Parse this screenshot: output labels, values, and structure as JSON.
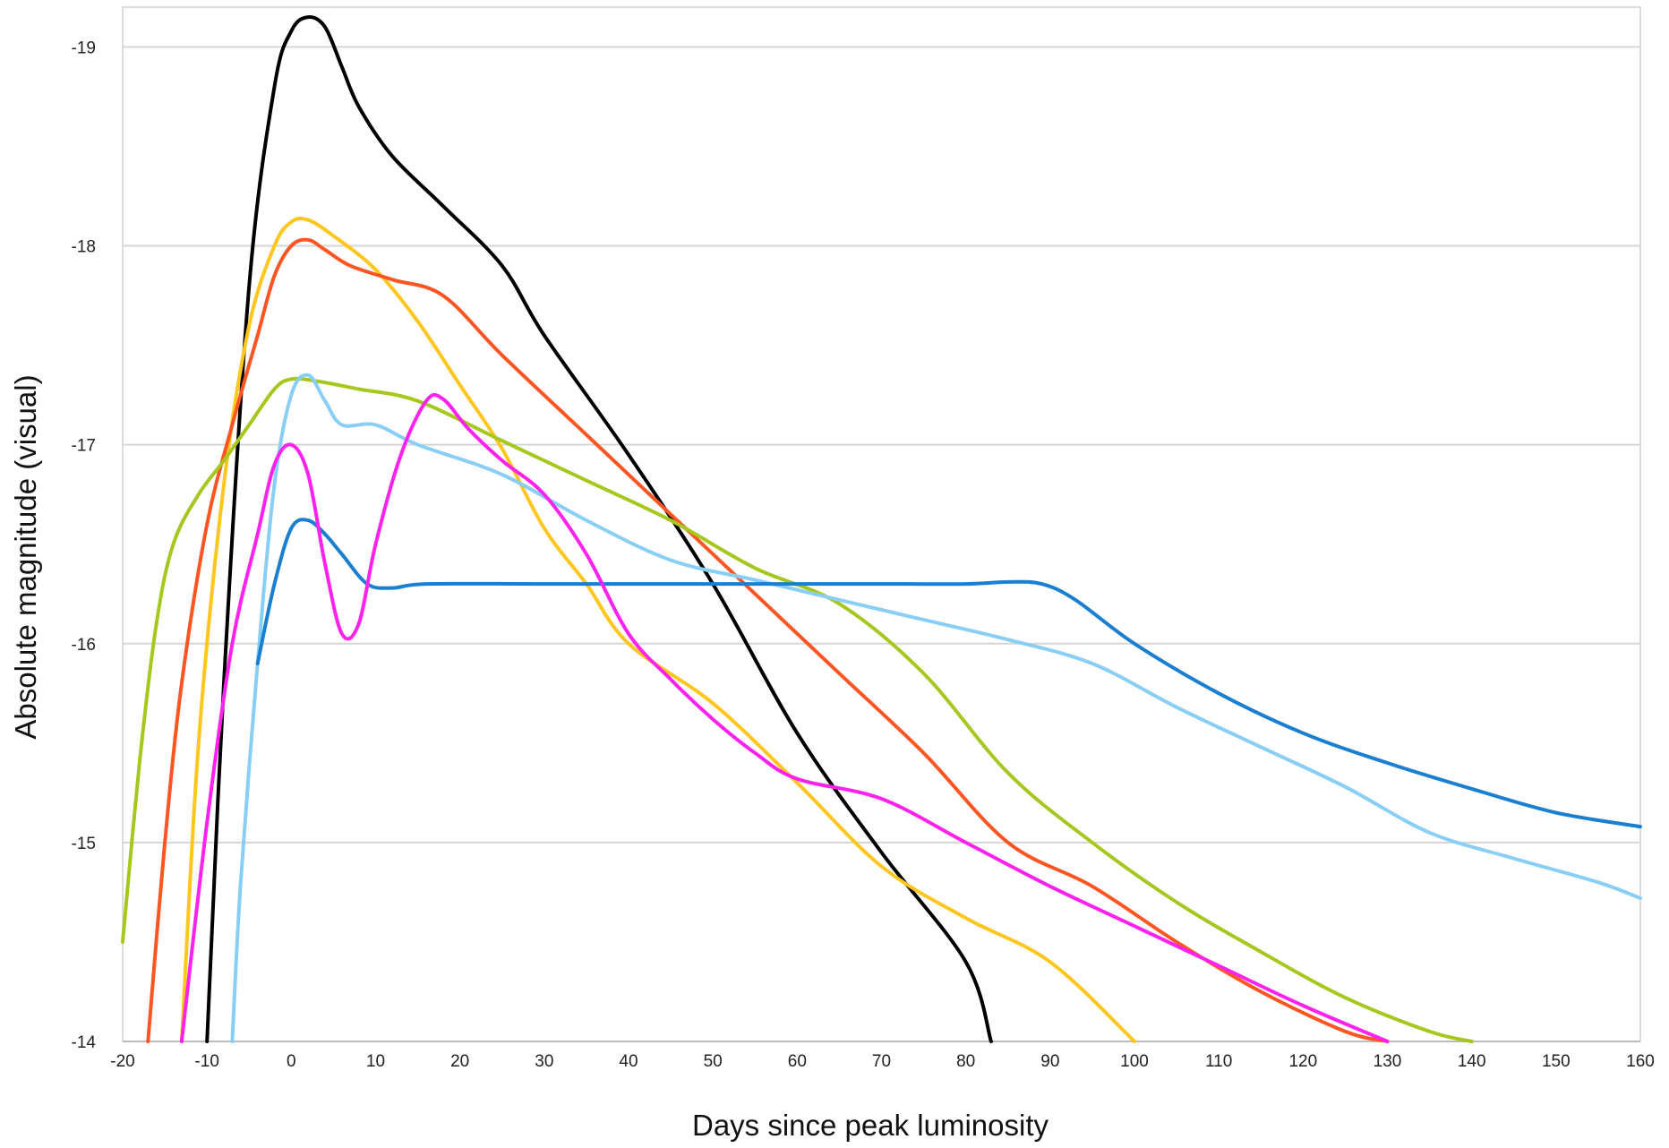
{
  "chart_data": {
    "type": "line",
    "title": "",
    "xlabel": "Days since peak luminosity",
    "ylabel": "Absolute magnitude (visual)",
    "xlim": [
      -20,
      160
    ],
    "ylim": [
      -14,
      -19.2
    ],
    "y_inverted": true,
    "grid": "horizontal",
    "legend": "none",
    "x_ticks": [
      -20,
      -10,
      0,
      10,
      20,
      30,
      40,
      50,
      60,
      70,
      80,
      90,
      100,
      110,
      120,
      130,
      140,
      150,
      160
    ],
    "x_tick_labels": [
      "-20",
      "-10",
      "0",
      "10",
      "20",
      "30",
      "40",
      "50",
      "60",
      "70",
      "80",
      "90",
      "100",
      "110",
      "120",
      "130",
      "140",
      "150",
      "160"
    ],
    "y_ticks": [
      -14,
      -15,
      -16,
      -17,
      -18,
      -19
    ],
    "y_tick_labels": [
      "-14",
      "-15",
      "-16",
      "-17",
      "-18",
      "-19"
    ],
    "series": [
      {
        "color": "#000000",
        "points": [
          [
            -10,
            -14
          ],
          [
            -8,
            -15.8
          ],
          [
            -5,
            -17.8
          ],
          [
            -2,
            -18.8
          ],
          [
            0,
            -19.08
          ],
          [
            2,
            -19.15
          ],
          [
            4,
            -19.1
          ],
          [
            6,
            -18.9
          ],
          [
            8,
            -18.7
          ],
          [
            12,
            -18.45
          ],
          [
            18,
            -18.2
          ],
          [
            25,
            -17.9
          ],
          [
            30,
            -17.55
          ],
          [
            40,
            -16.95
          ],
          [
            50,
            -16.3
          ],
          [
            60,
            -15.55
          ],
          [
            70,
            -14.95
          ],
          [
            80,
            -14.4
          ],
          [
            83,
            -14.0
          ]
        ]
      },
      {
        "color": "#ffc61e",
        "points": [
          [
            -13,
            -14
          ],
          [
            -11,
            -15.5
          ],
          [
            -8,
            -16.8
          ],
          [
            -5,
            -17.6
          ],
          [
            -2,
            -18.0
          ],
          [
            0,
            -18.12
          ],
          [
            2,
            -18.13
          ],
          [
            5,
            -18.05
          ],
          [
            10,
            -17.88
          ],
          [
            15,
            -17.62
          ],
          [
            20,
            -17.3
          ],
          [
            25,
            -16.98
          ],
          [
            30,
            -16.58
          ],
          [
            35,
            -16.3
          ],
          [
            40,
            -16.0
          ],
          [
            50,
            -15.7
          ],
          [
            60,
            -15.3
          ],
          [
            70,
            -14.88
          ],
          [
            80,
            -14.62
          ],
          [
            90,
            -14.4
          ],
          [
            100,
            -14.0
          ]
        ]
      },
      {
        "color": "#ff5522",
        "points": [
          [
            -17,
            -14
          ],
          [
            -15,
            -15.0
          ],
          [
            -13,
            -15.8
          ],
          [
            -10,
            -16.6
          ],
          [
            -7,
            -17.1
          ],
          [
            -4,
            -17.55
          ],
          [
            -2,
            -17.85
          ],
          [
            0,
            -18.0
          ],
          [
            2,
            -18.03
          ],
          [
            4,
            -17.98
          ],
          [
            7,
            -17.9
          ],
          [
            12,
            -17.83
          ],
          [
            18,
            -17.75
          ],
          [
            25,
            -17.45
          ],
          [
            35,
            -17.05
          ],
          [
            45,
            -16.65
          ],
          [
            55,
            -16.25
          ],
          [
            65,
            -15.85
          ],
          [
            75,
            -15.45
          ],
          [
            85,
            -15.0
          ],
          [
            95,
            -14.78
          ],
          [
            105,
            -14.5
          ],
          [
            115,
            -14.25
          ],
          [
            125,
            -14.05
          ],
          [
            130,
            -14.0
          ]
        ]
      },
      {
        "color": "#a6c81e",
        "points": [
          [
            -20,
            -14.5
          ],
          [
            -18,
            -15.4
          ],
          [
            -16,
            -16.1
          ],
          [
            -14,
            -16.5
          ],
          [
            -11,
            -16.75
          ],
          [
            -8,
            -16.92
          ],
          [
            -5,
            -17.1
          ],
          [
            -2,
            -17.28
          ],
          [
            0,
            -17.33
          ],
          [
            3,
            -17.32
          ],
          [
            8,
            -17.28
          ],
          [
            15,
            -17.22
          ],
          [
            25,
            -17.02
          ],
          [
            35,
            -16.82
          ],
          [
            45,
            -16.62
          ],
          [
            55,
            -16.38
          ],
          [
            65,
            -16.2
          ],
          [
            75,
            -15.85
          ],
          [
            85,
            -15.35
          ],
          [
            95,
            -15.0
          ],
          [
            105,
            -14.7
          ],
          [
            115,
            -14.45
          ],
          [
            125,
            -14.22
          ],
          [
            135,
            -14.05
          ],
          [
            140,
            -14.0
          ]
        ]
      },
      {
        "color": "#89cff5",
        "points": [
          [
            -7,
            -14
          ],
          [
            -6,
            -14.8
          ],
          [
            -4,
            -15.9
          ],
          [
            -2,
            -16.8
          ],
          [
            0,
            -17.25
          ],
          [
            2,
            -17.35
          ],
          [
            4,
            -17.22
          ],
          [
            6,
            -17.1
          ],
          [
            10,
            -17.1
          ],
          [
            15,
            -17.0
          ],
          [
            25,
            -16.85
          ],
          [
            35,
            -16.62
          ],
          [
            45,
            -16.42
          ],
          [
            55,
            -16.32
          ],
          [
            65,
            -16.22
          ],
          [
            75,
            -16.12
          ],
          [
            85,
            -16.02
          ],
          [
            95,
            -15.9
          ],
          [
            105,
            -15.68
          ],
          [
            115,
            -15.48
          ],
          [
            125,
            -15.28
          ],
          [
            135,
            -15.05
          ],
          [
            145,
            -14.92
          ],
          [
            155,
            -14.8
          ],
          [
            160,
            -14.72
          ]
        ]
      },
      {
        "color": "#1a7fd0",
        "points": [
          [
            -4,
            -15.9
          ],
          [
            -2,
            -16.3
          ],
          [
            0,
            -16.58
          ],
          [
            2,
            -16.62
          ],
          [
            4,
            -16.55
          ],
          [
            6,
            -16.45
          ],
          [
            9,
            -16.3
          ],
          [
            12,
            -16.28
          ],
          [
            16,
            -16.3
          ],
          [
            30,
            -16.3
          ],
          [
            50,
            -16.3
          ],
          [
            70,
            -16.3
          ],
          [
            80,
            -16.3
          ],
          [
            85,
            -16.31
          ],
          [
            89,
            -16.3
          ],
          [
            93,
            -16.22
          ],
          [
            100,
            -16.0
          ],
          [
            110,
            -15.75
          ],
          [
            120,
            -15.55
          ],
          [
            130,
            -15.4
          ],
          [
            140,
            -15.27
          ],
          [
            150,
            -15.15
          ],
          [
            160,
            -15.08
          ]
        ]
      },
      {
        "color": "#ff22ee",
        "points": [
          [
            -13,
            -14
          ],
          [
            -10,
            -15.1
          ],
          [
            -7,
            -16.0
          ],
          [
            -4,
            -16.55
          ],
          [
            -2,
            -16.9
          ],
          [
            0,
            -17.0
          ],
          [
            2,
            -16.85
          ],
          [
            4,
            -16.4
          ],
          [
            6,
            -16.05
          ],
          [
            8,
            -16.1
          ],
          [
            10,
            -16.5
          ],
          [
            13,
            -16.95
          ],
          [
            16,
            -17.22
          ],
          [
            18,
            -17.23
          ],
          [
            21,
            -17.08
          ],
          [
            25,
            -16.92
          ],
          [
            30,
            -16.75
          ],
          [
            35,
            -16.45
          ],
          [
            40,
            -16.05
          ],
          [
            45,
            -15.82
          ],
          [
            50,
            -15.62
          ],
          [
            55,
            -15.45
          ],
          [
            60,
            -15.32
          ],
          [
            70,
            -15.22
          ],
          [
            80,
            -15.0
          ],
          [
            90,
            -14.78
          ],
          [
            100,
            -14.58
          ],
          [
            110,
            -14.38
          ],
          [
            120,
            -14.18
          ],
          [
            130,
            -14.0
          ]
        ]
      }
    ]
  }
}
